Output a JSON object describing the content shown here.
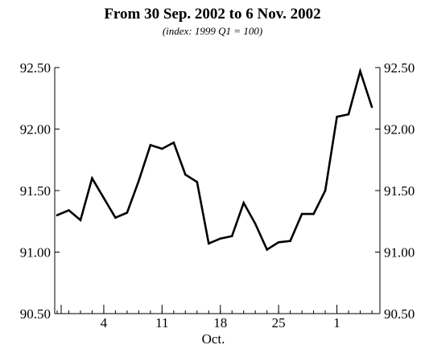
{
  "chart_data": {
    "type": "line",
    "title": "From 30 Sep. 2002 to 6 Nov. 2002",
    "subtitle": "(index: 1999 Q1 = 100)",
    "xlabel": "Oct.",
    "ylim": [
      90.5,
      92.5
    ],
    "y_ticks": [
      90.5,
      91.0,
      91.5,
      92.0,
      92.5
    ],
    "y_tick_labels": [
      "90.50",
      "91.00",
      "91.50",
      "92.00",
      "92.50"
    ],
    "x_ticks": [
      {
        "label": "4",
        "index": 4
      },
      {
        "label": "11",
        "index": 9
      },
      {
        "label": "18",
        "index": 14
      },
      {
        "label": "25",
        "index": 19
      },
      {
        "label": "1",
        "index": 24
      }
    ],
    "grid": false,
    "series": [
      {
        "values": [
          91.3,
          91.34,
          91.26,
          91.6,
          91.44,
          91.28,
          91.32,
          91.58,
          91.87,
          91.84,
          91.89,
          91.63,
          91.57,
          91.07,
          91.11,
          91.13,
          91.4,
          91.23,
          91.02,
          91.08,
          91.09,
          91.31,
          91.31,
          91.5,
          92.1,
          92.12,
          92.47,
          92.18
        ]
      }
    ]
  }
}
